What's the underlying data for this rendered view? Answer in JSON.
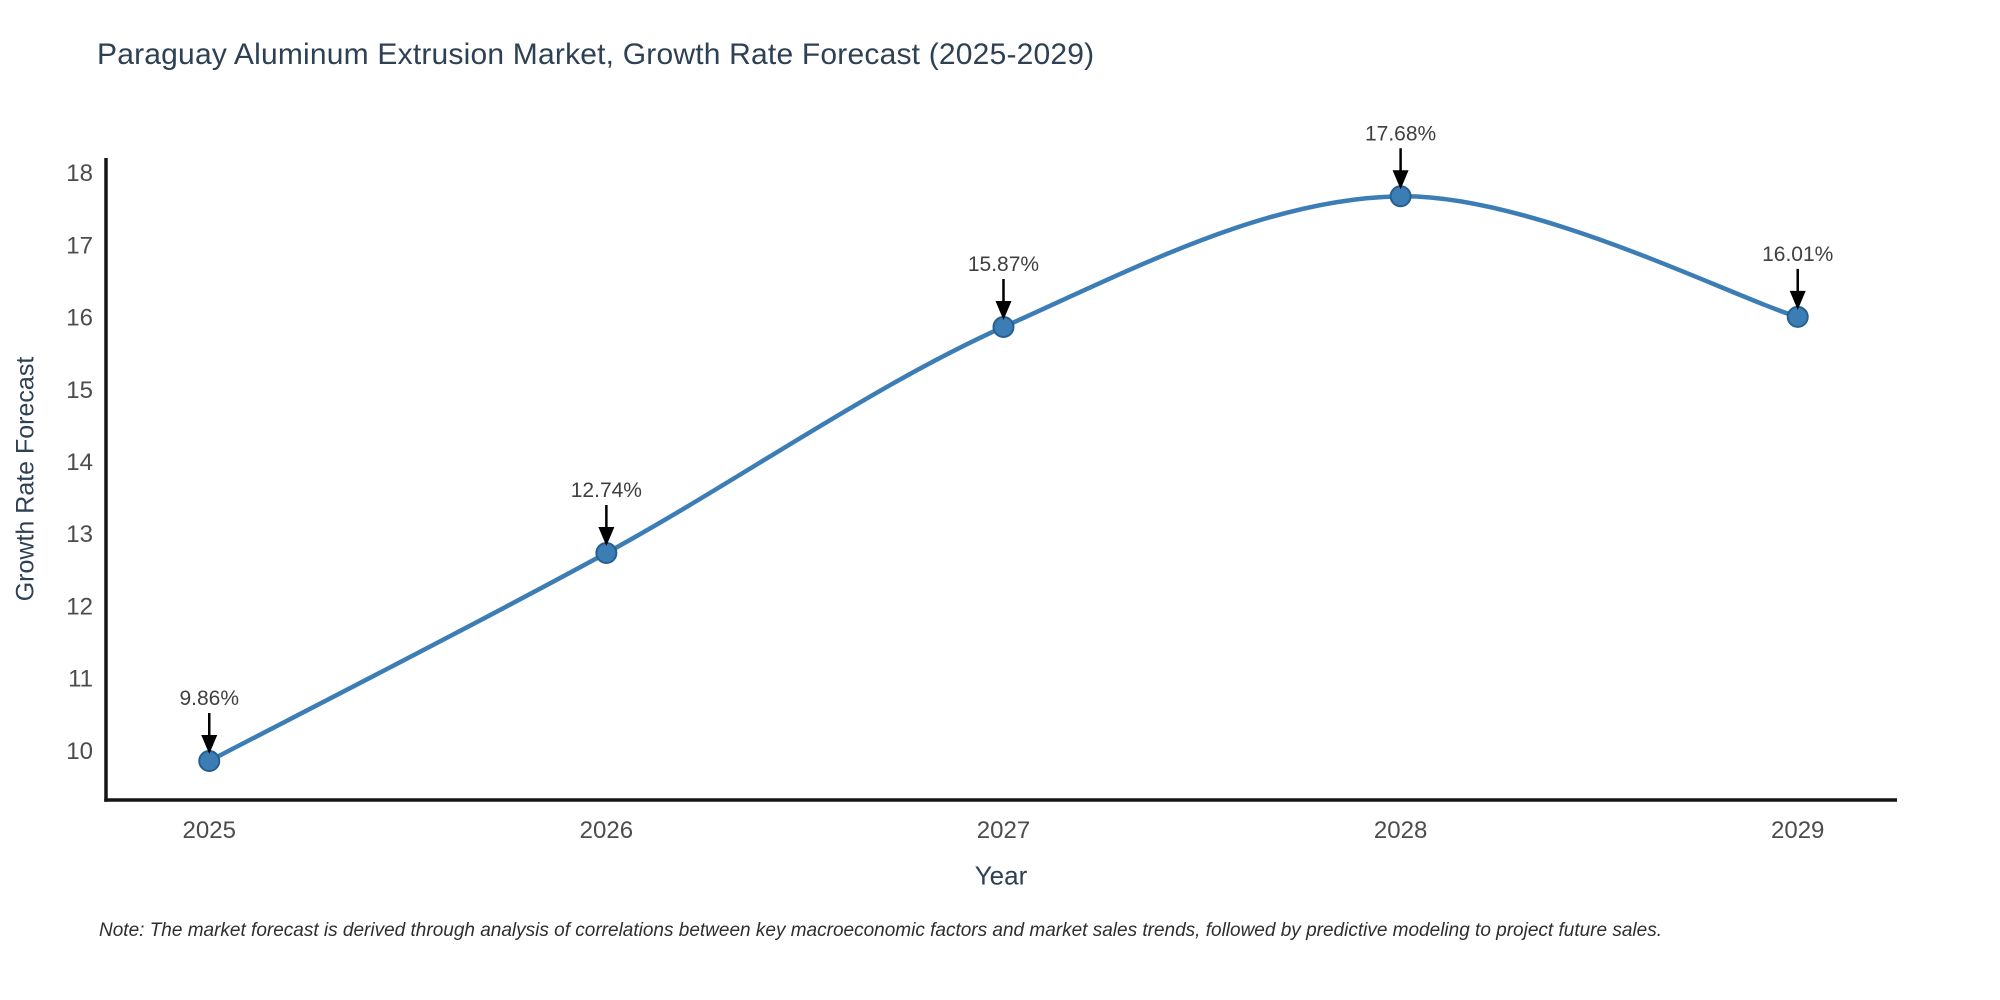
{
  "title": "Paraguay Aluminum Extrusion Market, Growth Rate Forecast (2025-2029)",
  "note": "Note: The market forecast is derived through analysis of correlations between key macroeconomic factors and market sales trends, followed by predictive modeling to project future sales.",
  "chart_data": {
    "type": "line",
    "title": "Paraguay Aluminum Extrusion Market, Growth Rate Forecast (2025-2029)",
    "xlabel": "Year",
    "ylabel": "Growth Rate Forecast",
    "x": [
      2025,
      2026,
      2027,
      2028,
      2029
    ],
    "series": [
      {
        "name": "Growth Rate Forecast",
        "values": [
          9.86,
          12.74,
          15.87,
          17.68,
          16.01
        ],
        "labels": [
          "9.86%",
          "12.74%",
          "15.87%",
          "17.68%",
          "16.01%"
        ]
      }
    ],
    "xticks": [
      "2025",
      "2026",
      "2027",
      "2028",
      "2029"
    ],
    "yticks": [
      10,
      11,
      12,
      13,
      14,
      15,
      16,
      17,
      18
    ],
    "xlim": [
      2024.74,
      2029.25
    ],
    "ylim": [
      9.32,
      18.21
    ],
    "line_shape": "spline",
    "grid": false,
    "legend": "none",
    "annotation_style": "value label with downward arrow above each data point",
    "colors": {
      "line": "#3c7db5",
      "marker_fill": "#3c7db5",
      "marker_edge": "#27608f",
      "axis": "#161616",
      "tick_text": "#4c4c4c",
      "annotation_text": "#404040",
      "arrow": "#000000",
      "title_text": "#2e4053",
      "axis_title_text": "#2e4053",
      "note_text": "#2e2e2e"
    }
  }
}
